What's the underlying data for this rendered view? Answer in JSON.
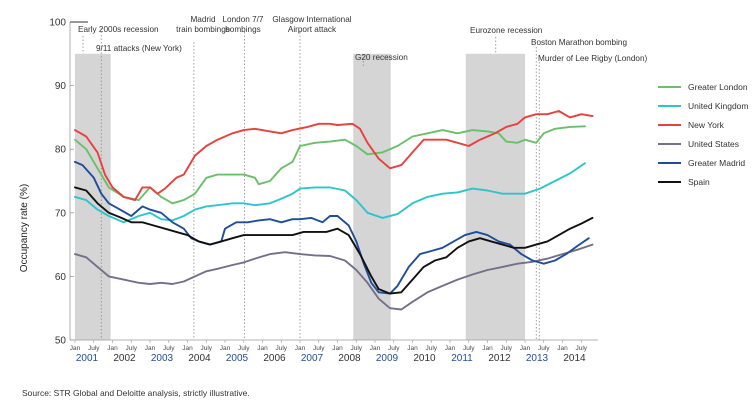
{
  "chart_data": {
    "type": "line",
    "title": "",
    "ylabel": "Occupancy rate (%)",
    "ylim": [
      50,
      100
    ],
    "yticks": [
      50,
      60,
      70,
      80,
      90,
      100
    ],
    "month_tick_labels": [
      "Jan",
      "July"
    ],
    "x_years": [
      "2001",
      "2002",
      "2003",
      "2004",
      "2005",
      "2006",
      "2007",
      "2008",
      "2009",
      "2010",
      "2011",
      "2012",
      "2013",
      "2014"
    ],
    "highlighted_years": [
      "2001",
      "2003",
      "2005",
      "2007",
      "2009",
      "2011",
      "2013"
    ],
    "recession_bands": [
      {
        "label": "Early 2000s recession",
        "start": 2001.0,
        "end": 2001.95
      },
      {
        "label": "G20 recession",
        "start": 2008.42,
        "end": 2009.42
      },
      {
        "label": "Eurozone recession",
        "start": 2011.42,
        "end": 2013.0
      }
    ],
    "events": [
      {
        "label": "9/11 attacks (New York)",
        "t": 2001.7
      },
      {
        "label": "Madrid train bombings",
        "t": 2004.17
      },
      {
        "label": "London 7/7 bombings",
        "t": 2005.52
      },
      {
        "label": "Glasgow International Airport attack",
        "t": 2007.0
      },
      {
        "label": "Boston Marathon bombing",
        "t": 2013.3
      },
      {
        "label": "Murder of Lee Rigby (London)",
        "t": 2013.38
      }
    ],
    "series": [
      {
        "name": "Greater London",
        "color": "#6abf69",
        "points": [
          [
            2001.0,
            81.5
          ],
          [
            2001.3,
            80
          ],
          [
            2001.6,
            77
          ],
          [
            2001.9,
            74
          ],
          [
            2002.3,
            72.5
          ],
          [
            2002.7,
            72
          ],
          [
            2003.0,
            74
          ],
          [
            2003.3,
            72.5
          ],
          [
            2003.6,
            71.5
          ],
          [
            2003.9,
            72
          ],
          [
            2004.2,
            73
          ],
          [
            2004.5,
            75.5
          ],
          [
            2004.8,
            76
          ],
          [
            2005.2,
            76
          ],
          [
            2005.5,
            76
          ],
          [
            2005.8,
            75.5
          ],
          [
            2005.9,
            74.5
          ],
          [
            2006.2,
            75
          ],
          [
            2006.5,
            77
          ],
          [
            2006.8,
            78
          ],
          [
            2007.0,
            80.5
          ],
          [
            2007.4,
            81
          ],
          [
            2007.8,
            81.2
          ],
          [
            2008.2,
            81.5
          ],
          [
            2008.5,
            80.5
          ],
          [
            2008.8,
            79.2
          ],
          [
            2009.2,
            79.5
          ],
          [
            2009.6,
            80.5
          ],
          [
            2010.0,
            82
          ],
          [
            2010.4,
            82.5
          ],
          [
            2010.8,
            83
          ],
          [
            2011.2,
            82.5
          ],
          [
            2011.6,
            83
          ],
          [
            2012.0,
            82.8
          ],
          [
            2012.3,
            82.5
          ],
          [
            2012.5,
            81.2
          ],
          [
            2012.8,
            81
          ],
          [
            2013.0,
            81.5
          ],
          [
            2013.3,
            81
          ],
          [
            2013.5,
            82.5
          ],
          [
            2013.8,
            83.2
          ],
          [
            2014.2,
            83.5
          ],
          [
            2014.6,
            83.6
          ]
        ]
      },
      {
        "name": "United Kingdom",
        "color": "#2ec4cc",
        "points": [
          [
            2001.0,
            72.5
          ],
          [
            2001.3,
            72
          ],
          [
            2001.6,
            70.5
          ],
          [
            2001.9,
            69.5
          ],
          [
            2002.3,
            68.5
          ],
          [
            2002.7,
            69.5
          ],
          [
            2003.0,
            70
          ],
          [
            2003.3,
            69
          ],
          [
            2003.6,
            68.8
          ],
          [
            2003.9,
            69.5
          ],
          [
            2004.2,
            70.5
          ],
          [
            2004.5,
            71
          ],
          [
            2004.8,
            71.2
          ],
          [
            2005.2,
            71.5
          ],
          [
            2005.5,
            71.5
          ],
          [
            2005.8,
            71.2
          ],
          [
            2006.2,
            71.5
          ],
          [
            2006.5,
            72.2
          ],
          [
            2006.8,
            73
          ],
          [
            2007.0,
            73.8
          ],
          [
            2007.4,
            74
          ],
          [
            2007.8,
            74
          ],
          [
            2008.2,
            73.5
          ],
          [
            2008.5,
            72
          ],
          [
            2008.8,
            70
          ],
          [
            2009.2,
            69.2
          ],
          [
            2009.6,
            69.8
          ],
          [
            2010.0,
            71.5
          ],
          [
            2010.4,
            72.5
          ],
          [
            2010.8,
            73
          ],
          [
            2011.2,
            73.2
          ],
          [
            2011.6,
            73.8
          ],
          [
            2012.0,
            73.5
          ],
          [
            2012.4,
            73
          ],
          [
            2012.8,
            73
          ],
          [
            2013.0,
            73
          ],
          [
            2013.4,
            73.8
          ],
          [
            2013.8,
            75
          ],
          [
            2014.2,
            76.2
          ],
          [
            2014.6,
            77.8
          ]
        ]
      },
      {
        "name": "New York",
        "color": "#e8403c",
        "points": [
          [
            2001.0,
            83
          ],
          [
            2001.3,
            82
          ],
          [
            2001.6,
            79.5
          ],
          [
            2001.8,
            76
          ],
          [
            2002.0,
            74
          ],
          [
            2002.3,
            72.5
          ],
          [
            2002.6,
            72
          ],
          [
            2002.8,
            74
          ],
          [
            2003.0,
            74
          ],
          [
            2003.2,
            73
          ],
          [
            2003.4,
            73.8
          ],
          [
            2003.7,
            75.5
          ],
          [
            2003.9,
            76
          ],
          [
            2004.2,
            79
          ],
          [
            2004.5,
            80.5
          ],
          [
            2004.8,
            81.5
          ],
          [
            2005.2,
            82.5
          ],
          [
            2005.5,
            83
          ],
          [
            2005.8,
            83.2
          ],
          [
            2006.2,
            82.8
          ],
          [
            2006.5,
            82.5
          ],
          [
            2006.8,
            83
          ],
          [
            2007.2,
            83.5
          ],
          [
            2007.5,
            84
          ],
          [
            2007.8,
            84
          ],
          [
            2008.0,
            83.8
          ],
          [
            2008.4,
            84
          ],
          [
            2008.6,
            83.2
          ],
          [
            2008.8,
            81
          ],
          [
            2009.1,
            78.5
          ],
          [
            2009.4,
            77
          ],
          [
            2009.7,
            77.5
          ],
          [
            2010.0,
            79.5
          ],
          [
            2010.3,
            81.5
          ],
          [
            2010.6,
            81.5
          ],
          [
            2010.9,
            81.5
          ],
          [
            2011.2,
            81
          ],
          [
            2011.5,
            80.5
          ],
          [
            2011.8,
            81.5
          ],
          [
            2012.2,
            82.5
          ],
          [
            2012.5,
            83.5
          ],
          [
            2012.8,
            84
          ],
          [
            2013.0,
            85
          ],
          [
            2013.3,
            85.5
          ],
          [
            2013.6,
            85.5
          ],
          [
            2013.9,
            86
          ],
          [
            2014.2,
            85
          ],
          [
            2014.5,
            85.5
          ],
          [
            2014.8,
            85.2
          ]
        ]
      },
      {
        "name": "United States",
        "color": "#75708a",
        "points": [
          [
            2001.0,
            63.5
          ],
          [
            2001.3,
            63
          ],
          [
            2001.6,
            61.5
          ],
          [
            2001.9,
            60
          ],
          [
            2002.3,
            59.5
          ],
          [
            2002.7,
            59
          ],
          [
            2003.0,
            58.8
          ],
          [
            2003.3,
            59
          ],
          [
            2003.6,
            58.8
          ],
          [
            2003.9,
            59.2
          ],
          [
            2004.2,
            60
          ],
          [
            2004.5,
            60.8
          ],
          [
            2004.8,
            61.2
          ],
          [
            2005.2,
            61.8
          ],
          [
            2005.5,
            62.2
          ],
          [
            2005.8,
            62.8
          ],
          [
            2006.2,
            63.5
          ],
          [
            2006.6,
            63.8
          ],
          [
            2007.0,
            63.5
          ],
          [
            2007.4,
            63.3
          ],
          [
            2007.8,
            63.2
          ],
          [
            2008.2,
            62.5
          ],
          [
            2008.5,
            61
          ],
          [
            2008.8,
            59
          ],
          [
            2009.1,
            56.5
          ],
          [
            2009.4,
            55
          ],
          [
            2009.7,
            54.8
          ],
          [
            2010.0,
            56
          ],
          [
            2010.4,
            57.5
          ],
          [
            2010.8,
            58.5
          ],
          [
            2011.2,
            59.5
          ],
          [
            2011.6,
            60.3
          ],
          [
            2012.0,
            61
          ],
          [
            2012.4,
            61.5
          ],
          [
            2012.8,
            62
          ],
          [
            2013.2,
            62.3
          ],
          [
            2013.6,
            62.8
          ],
          [
            2014.0,
            63.5
          ],
          [
            2014.4,
            64.2
          ],
          [
            2014.8,
            65
          ]
        ]
      },
      {
        "name": "Greater Madrid",
        "color": "#1f4e99",
        "points": [
          [
            2001.0,
            78
          ],
          [
            2001.2,
            77.5
          ],
          [
            2001.5,
            75.5
          ],
          [
            2001.7,
            73
          ],
          [
            2001.9,
            71.5
          ],
          [
            2002.2,
            70.5
          ],
          [
            2002.5,
            69.5
          ],
          [
            2002.8,
            71
          ],
          [
            2003.0,
            70.5
          ],
          [
            2003.3,
            70
          ],
          [
            2003.6,
            68.5
          ],
          [
            2003.9,
            67.5
          ],
          [
            2004.1,
            66
          ],
          [
            2004.3,
            65.5
          ],
          [
            2004.6,
            65
          ],
          [
            2004.9,
            65.5
          ],
          [
            2005.0,
            67.5
          ],
          [
            2005.3,
            68.5
          ],
          [
            2005.6,
            68.5
          ],
          [
            2005.9,
            68.8
          ],
          [
            2006.2,
            69
          ],
          [
            2006.5,
            68.5
          ],
          [
            2006.8,
            69
          ],
          [
            2007.0,
            69
          ],
          [
            2007.3,
            69.2
          ],
          [
            2007.6,
            68.5
          ],
          [
            2007.8,
            69.5
          ],
          [
            2008.0,
            69.5
          ],
          [
            2008.3,
            68
          ],
          [
            2008.5,
            65.5
          ],
          [
            2008.7,
            62
          ],
          [
            2008.9,
            59
          ],
          [
            2009.1,
            57.5
          ],
          [
            2009.4,
            57.3
          ],
          [
            2009.6,
            58.5
          ],
          [
            2009.9,
            61.5
          ],
          [
            2010.2,
            63.5
          ],
          [
            2010.5,
            64
          ],
          [
            2010.8,
            64.5
          ],
          [
            2011.1,
            65.5
          ],
          [
            2011.4,
            66.5
          ],
          [
            2011.7,
            67
          ],
          [
            2012.0,
            66.5
          ],
          [
            2012.3,
            65.5
          ],
          [
            2012.6,
            65
          ],
          [
            2012.9,
            63.5
          ],
          [
            2013.2,
            62.5
          ],
          [
            2013.5,
            62
          ],
          [
            2013.8,
            62.5
          ],
          [
            2014.1,
            63.5
          ],
          [
            2014.4,
            64.8
          ],
          [
            2014.7,
            66
          ]
        ]
      },
      {
        "name": "Spain",
        "color": "#111111",
        "points": [
          [
            2001.0,
            74
          ],
          [
            2001.3,
            73.5
          ],
          [
            2001.6,
            71.5
          ],
          [
            2001.9,
            70
          ],
          [
            2002.2,
            69.3
          ],
          [
            2002.5,
            68.5
          ],
          [
            2002.8,
            68.5
          ],
          [
            2003.1,
            68
          ],
          [
            2003.4,
            67.5
          ],
          [
            2003.7,
            67
          ],
          [
            2004.0,
            66.5
          ],
          [
            2004.3,
            65.5
          ],
          [
            2004.6,
            65
          ],
          [
            2004.9,
            65.5
          ],
          [
            2005.2,
            66
          ],
          [
            2005.5,
            66.5
          ],
          [
            2005.8,
            66.5
          ],
          [
            2006.2,
            66.5
          ],
          [
            2006.5,
            66.5
          ],
          [
            2006.8,
            66.5
          ],
          [
            2007.1,
            67
          ],
          [
            2007.4,
            67
          ],
          [
            2007.7,
            67
          ],
          [
            2008.0,
            67.5
          ],
          [
            2008.3,
            66.5
          ],
          [
            2008.6,
            63.5
          ],
          [
            2008.9,
            60
          ],
          [
            2009.1,
            58
          ],
          [
            2009.4,
            57.3
          ],
          [
            2009.7,
            57.5
          ],
          [
            2010.0,
            59.5
          ],
          [
            2010.3,
            61.5
          ],
          [
            2010.6,
            62.5
          ],
          [
            2010.9,
            63
          ],
          [
            2011.2,
            64.5
          ],
          [
            2011.5,
            65.5
          ],
          [
            2011.8,
            66
          ],
          [
            2012.1,
            65.5
          ],
          [
            2012.4,
            65
          ],
          [
            2012.7,
            64.5
          ],
          [
            2013.0,
            64.5
          ],
          [
            2013.3,
            65
          ],
          [
            2013.6,
            65.5
          ],
          [
            2013.9,
            66.5
          ],
          [
            2014.2,
            67.5
          ],
          [
            2014.5,
            68.3
          ],
          [
            2014.8,
            69.2
          ]
        ]
      }
    ]
  },
  "footer": {
    "source": "Source: STR Global and Deloitte analysis, strictly illustrative."
  }
}
